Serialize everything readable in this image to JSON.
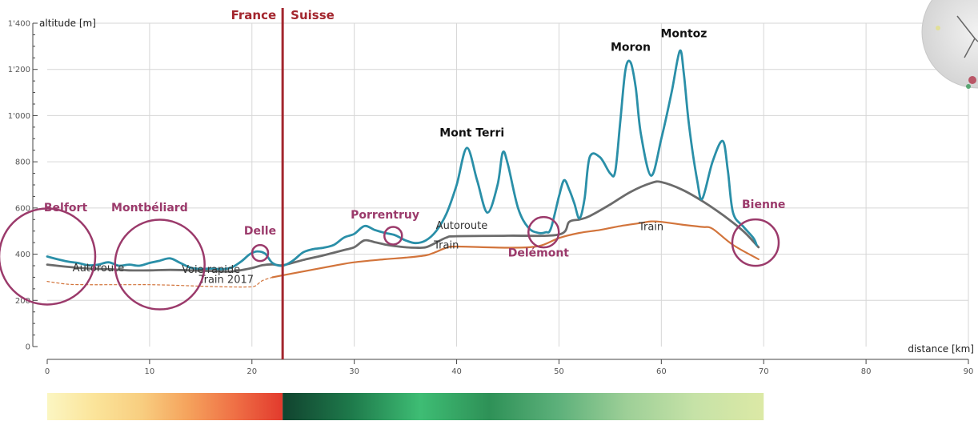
{
  "chart_data": {
    "type": "line",
    "xlabel": "distance [km]",
    "ylabel": "altitude [m]",
    "xlim": [
      0,
      90
    ],
    "ylim": [
      0,
      1400
    ],
    "xticks": [
      0,
      10,
      20,
      30,
      40,
      50,
      60,
      70,
      80,
      90
    ],
    "yticks": [
      {
        "v": 0,
        "label": "0"
      },
      {
        "v": 200,
        "label": "200"
      },
      {
        "v": 400,
        "label": "400"
      },
      {
        "v": 600,
        "label": "600"
      },
      {
        "v": 800,
        "label": "800"
      },
      {
        "v": 1000,
        "label": "1'000"
      },
      {
        "v": 1200,
        "label": "1'200"
      },
      {
        "v": 1400,
        "label": "1'400"
      }
    ],
    "grid": true,
    "series": [
      {
        "id": "terrain",
        "color": "#2a8fa8",
        "x": [
          0,
          1,
          2,
          3,
          4,
          5,
          6,
          7,
          8,
          9,
          10,
          11,
          12,
          13,
          14,
          15,
          16,
          17,
          18,
          19,
          19.8,
          20.5,
          21.3,
          22,
          23,
          24,
          25,
          26,
          27,
          28,
          29,
          30,
          31,
          32,
          33,
          34,
          35,
          36,
          37,
          38,
          39,
          40,
          41,
          42,
          43,
          44,
          44.5,
          45,
          46,
          47,
          48,
          48.7,
          49.2,
          50,
          50.5,
          51,
          51.5,
          52,
          52.5,
          53,
          54,
          55,
          55.5,
          56,
          56.5,
          57,
          57.5,
          58,
          59,
          60,
          61,
          61.8,
          62.2,
          62.7,
          63.5,
          64,
          65,
          66,
          66.5,
          67,
          68,
          69,
          69.3
        ],
        "y": [
          390,
          378,
          368,
          362,
          352,
          355,
          365,
          350,
          355,
          350,
          362,
          372,
          382,
          362,
          342,
          336,
          338,
          335,
          342,
          370,
          400,
          412,
          402,
          362,
          350,
          372,
          408,
          422,
          428,
          440,
          472,
          488,
          522,
          505,
          492,
          482,
          460,
          448,
          460,
          500,
          575,
          700,
          860,
          720,
          580,
          700,
          840,
          790,
          600,
          515,
          492,
          495,
          510,
          650,
          720,
          680,
          620,
          555,
          640,
          820,
          820,
          750,
          760,
          980,
          1200,
          1230,
          1120,
          920,
          740,
          900,
          1100,
          1280,
          1180,
          960,
          720,
          640,
          800,
          890,
          760,
          580,
          520,
          470,
          440
        ]
      },
      {
        "id": "autoroute",
        "color": "#6b6b6b",
        "x": [
          0,
          2,
          4,
          6,
          8,
          10,
          12,
          14,
          16,
          18,
          20,
          21,
          22,
          23,
          25,
          27,
          29,
          30,
          31,
          32,
          33,
          34,
          35,
          36,
          37,
          38,
          39,
          40,
          45,
          50,
          51,
          52,
          53,
          55,
          57,
          59,
          60,
          62,
          64,
          66,
          68,
          69.5
        ],
        "y": [
          355,
          345,
          338,
          335,
          330,
          330,
          332,
          330,
          327,
          325,
          340,
          352,
          356,
          352,
          375,
          395,
          418,
          430,
          460,
          452,
          442,
          435,
          430,
          428,
          430,
          450,
          472,
          478,
          480,
          485,
          540,
          550,
          565,
          615,
          670,
          708,
          712,
          680,
          630,
          570,
          500,
          430
        ]
      },
      {
        "id": "train",
        "color": "#d2743b",
        "x": [
          22,
          25,
          28,
          30,
          33,
          35,
          37,
          38,
          39,
          40,
          45,
          48,
          50,
          52,
          54,
          56,
          58,
          59,
          60,
          62,
          64,
          65,
          67,
          69.5
        ],
        "y": [
          300,
          325,
          350,
          365,
          378,
          385,
          395,
          410,
          428,
          433,
          428,
          435,
          470,
          492,
          505,
          522,
          535,
          542,
          540,
          528,
          518,
          510,
          440,
          378
        ]
      },
      {
        "id": "train2017",
        "color": "#d2743b",
        "dashed": true,
        "x": [
          0,
          2,
          4,
          6,
          8,
          10,
          12,
          14,
          16,
          18,
          19.5,
          20.3,
          21,
          22
        ],
        "y": [
          282,
          270,
          268,
          268,
          268,
          268,
          266,
          263,
          260,
          258,
          258,
          262,
          285,
          300
        ]
      }
    ],
    "route_labels": [
      {
        "text": "Autoroute",
        "x": 5,
        "y": 325
      },
      {
        "text": "Voie rapide",
        "x": 16,
        "y": 318
      },
      {
        "text": "Train 2017",
        "x": 17.5,
        "y": 275
      },
      {
        "text": "Autoroute",
        "x": 40.5,
        "y": 510
      },
      {
        "text": "Train",
        "x": 39,
        "y": 425
      },
      {
        "text": "Train",
        "x": 59,
        "y": 505
      }
    ],
    "cities": [
      {
        "name": "Belfort",
        "x": 0,
        "y": 390,
        "r": 60,
        "lx": 1.8,
        "ly": 585
      },
      {
        "name": "Montbéliard",
        "x": 11,
        "y": 355,
        "r": 56,
        "lx": 10,
        "ly": 585
      },
      {
        "name": "Delle",
        "x": 20.8,
        "y": 405,
        "r": 10,
        "lx": 20.8,
        "ly": 485
      },
      {
        "name": "Porrentruy",
        "x": 33.8,
        "y": 480,
        "r": 11,
        "lx": 33,
        "ly": 555
      },
      {
        "name": "Delémont",
        "x": 48.5,
        "y": 495,
        "r": 19,
        "lx": 48,
        "ly": 390
      },
      {
        "name": "Bienne",
        "x": 69.2,
        "y": 450,
        "r": 29,
        "lx": 70,
        "ly": 600
      }
    ],
    "peaks": [
      {
        "name": "Mont Terri",
        "x": 41.5,
        "y": 910
      },
      {
        "name": "Moron",
        "x": 57,
        "y": 1280
      },
      {
        "name": "Montoz",
        "x": 62.2,
        "y": 1340
      }
    ],
    "border": {
      "x": 23,
      "left": "France",
      "right": "Suisse",
      "color": "#a3262e"
    },
    "colors": {
      "city": "#9b3a6b"
    },
    "gradient_bar": {
      "x_range": [
        0,
        70
      ],
      "split": 23,
      "left_stops": [
        "#fbf6c2",
        "#fbe49a",
        "#f8ce80",
        "#f5a25c",
        "#ef6f45",
        "#e23a2d"
      ],
      "right_stops": [
        "#11432f",
        "#1e7a4b",
        "#3ebd74",
        "#2e9157",
        "#5cb07a",
        "#9dcf97",
        "#c6e2a7",
        "#dce9a6"
      ]
    }
  }
}
